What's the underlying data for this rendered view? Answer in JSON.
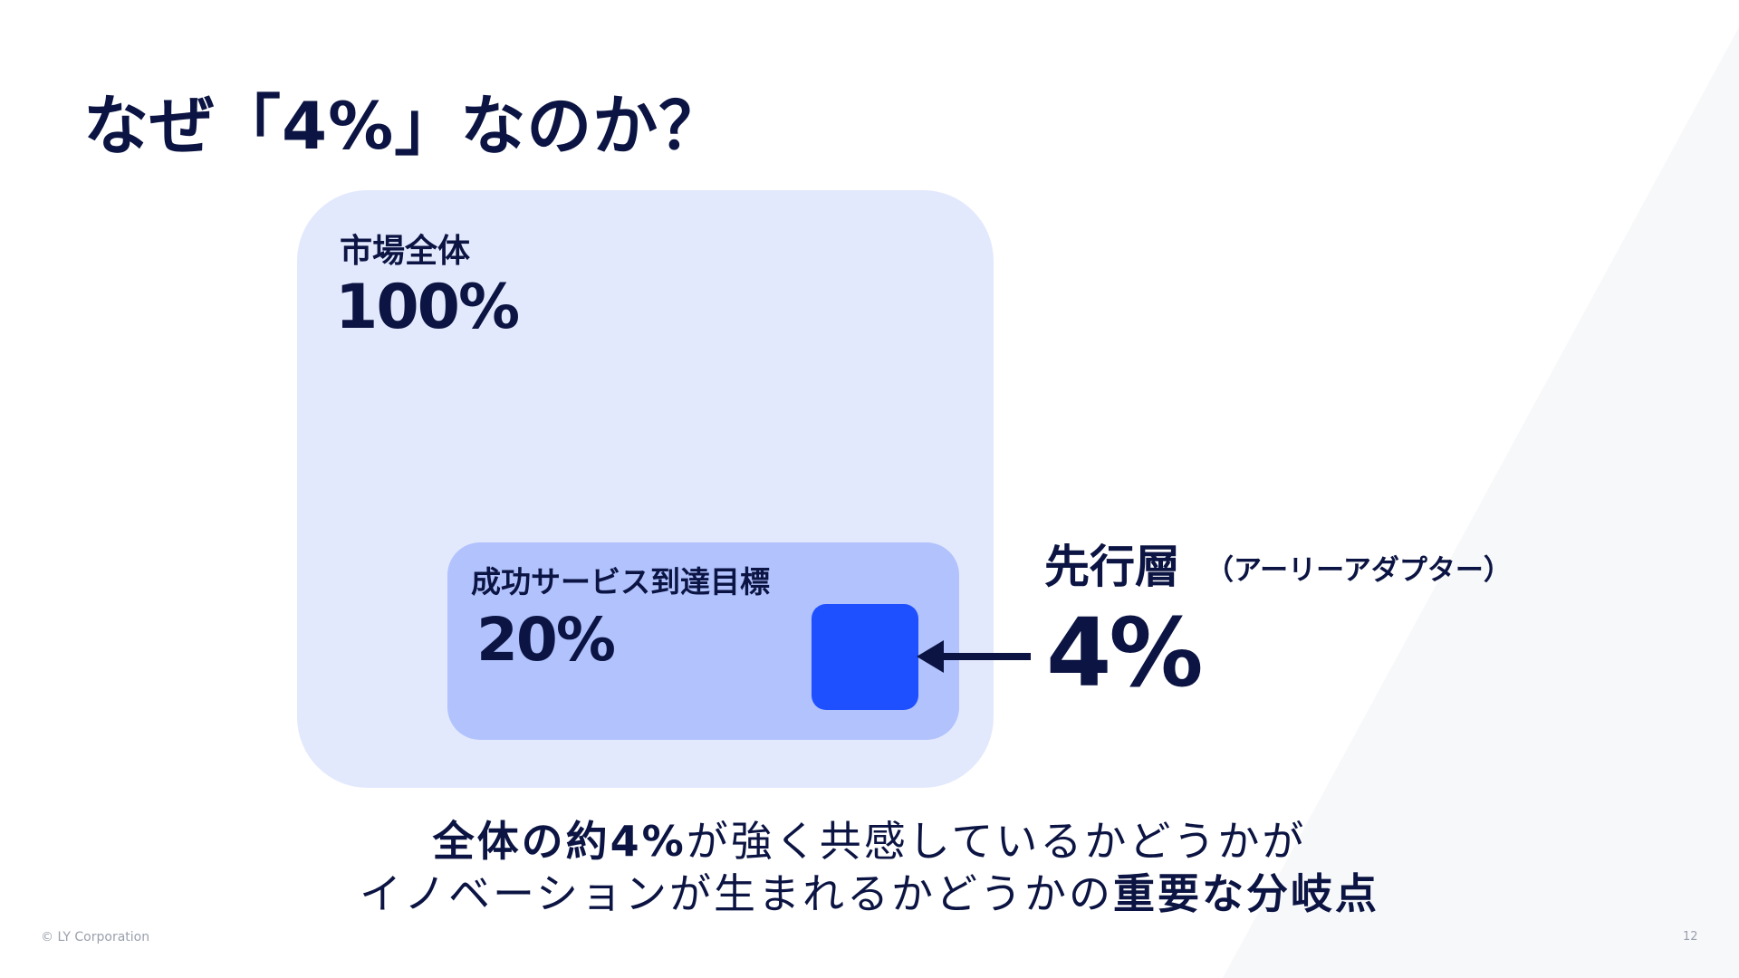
{
  "slide": {
    "title": "なぜ「4%」なのか？"
  },
  "diagram": {
    "market": {
      "label": "市場全体",
      "value": "100%"
    },
    "success_target": {
      "label": "成功サービス到達目標",
      "value": "20%"
    },
    "early_adopters": {
      "label": "先行層",
      "sub_label": "（アーリーアダプター）",
      "value": "4%"
    }
  },
  "summary": {
    "line1_bold": "全体の約4%",
    "line1_rest": "が強く共感しているかどうかが",
    "line2_rest": "イノベーションが生まれるかどうかの",
    "line2_bold": "重要な分岐点"
  },
  "footer": {
    "copyright": "© LY Corporation",
    "page_number": "12"
  },
  "colors": {
    "title_navy": "#0b1442",
    "outer_box": "#e3e9fd",
    "inner_box": "#b1c2fd",
    "highlight_box": "#1f50ff",
    "background_shape": "#f7f8fa"
  }
}
